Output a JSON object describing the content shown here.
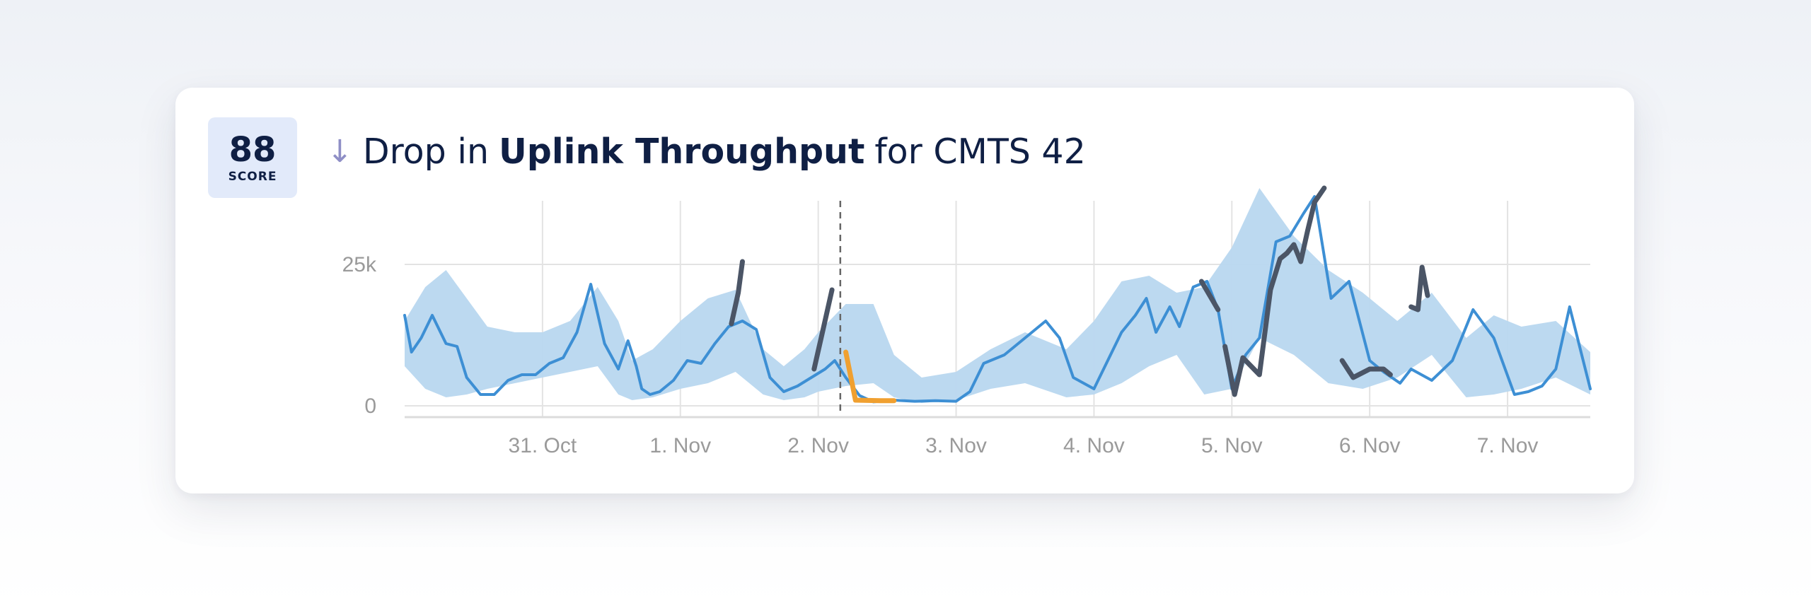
{
  "card": {
    "score": {
      "value": "88",
      "label": "SCORE"
    },
    "title": {
      "arrow_icon": "arrow-down-icon",
      "prefix": "Drop in",
      "metric": "Uplink Throughput",
      "suffix": "for CMTS 42"
    }
  },
  "chart_data": {
    "type": "line",
    "x_unit": "days",
    "x_start": "30. Oct",
    "xlim": [
      0.0,
      8.6
    ],
    "ylim": [
      0,
      35000
    ],
    "y_ticks": [
      {
        "value": 0,
        "label": "0"
      },
      {
        "value": 25000,
        "label": "25k"
      }
    ],
    "x_ticks": [
      {
        "value": 1,
        "label": "31. Oct"
      },
      {
        "value": 2,
        "label": "1. Nov"
      },
      {
        "value": 3,
        "label": "2. Nov"
      },
      {
        "value": 4,
        "label": "3. Nov"
      },
      {
        "value": 5,
        "label": "4. Nov"
      },
      {
        "value": 6,
        "label": "5. Nov"
      },
      {
        "value": 7,
        "label": "6. Nov"
      },
      {
        "value": 8,
        "label": "7. Nov"
      }
    ],
    "grid": true,
    "event_marker_x": 3.16,
    "colors": {
      "band": "#b8d7ef",
      "line": "#3d8fd4",
      "anomaly_high": "#4b5566",
      "anomaly_drop": "#f0a030",
      "grid": "#e3e3e3",
      "marker": "#666666"
    },
    "expected_band": {
      "x": [
        0.0,
        0.15,
        0.3,
        0.45,
        0.6,
        0.8,
        1.0,
        1.2,
        1.4,
        1.55,
        1.65,
        1.8,
        2.0,
        2.2,
        2.4,
        2.6,
        2.75,
        2.9,
        3.0,
        3.2,
        3.4,
        3.55,
        3.75,
        4.0,
        4.25,
        4.5,
        4.8,
        5.0,
        5.2,
        5.4,
        5.6,
        5.8,
        6.0,
        6.2,
        6.45,
        6.7,
        6.95,
        7.2,
        7.45,
        7.7,
        7.9,
        8.1,
        8.35,
        8.6
      ],
      "upper": [
        15000,
        21000,
        24000,
        19000,
        14000,
        13000,
        13000,
        15000,
        21000,
        15000,
        8000,
        10000,
        15000,
        19000,
        20500,
        10000,
        7000,
        10000,
        13000,
        18000,
        18000,
        9000,
        5000,
        6000,
        10000,
        13000,
        10000,
        15000,
        22000,
        23000,
        20000,
        21000,
        28000,
        38500,
        30000,
        24000,
        20000,
        15000,
        20000,
        12000,
        16000,
        14000,
        15000,
        9500
      ],
      "lower": [
        7000,
        3000,
        1500,
        2000,
        3000,
        4000,
        5000,
        6000,
        7000,
        2000,
        1000,
        1500,
        3000,
        4000,
        6000,
        2000,
        1000,
        1500,
        2500,
        3500,
        4000,
        1500,
        500,
        1000,
        3000,
        4000,
        1500,
        2000,
        4000,
        7000,
        9000,
        2000,
        3000,
        12000,
        9000,
        4000,
        3000,
        5000,
        9000,
        1500,
        2000,
        3000,
        5000,
        2000
      ]
    },
    "series": [
      {
        "role": "observed",
        "x": [
          0.0,
          0.05,
          0.12,
          0.2,
          0.3,
          0.38,
          0.45,
          0.55,
          0.65,
          0.75,
          0.85,
          0.95,
          1.05,
          1.15,
          1.25,
          1.35,
          1.45,
          1.55,
          1.62,
          1.68,
          1.72,
          1.78,
          1.85,
          1.95,
          2.05,
          2.15,
          2.25,
          2.35,
          2.45,
          2.55,
          2.65,
          2.75,
          2.85,
          2.95,
          3.05,
          3.12,
          3.2,
          3.3,
          3.4,
          3.55,
          3.7,
          3.85,
          4.0,
          4.1,
          4.2,
          4.35,
          4.5,
          4.65,
          4.75,
          4.85,
          5.0,
          5.1,
          5.2,
          5.3,
          5.38,
          5.45,
          5.55,
          5.62,
          5.72,
          5.82,
          5.9,
          6.0,
          6.1,
          6.2,
          6.32,
          6.42,
          6.52,
          6.6,
          6.72,
          6.85,
          7.0,
          7.1,
          7.22,
          7.3,
          7.45,
          7.6,
          7.75,
          7.9,
          8.05,
          8.15,
          8.25,
          8.35,
          8.45,
          8.6
        ],
        "y": [
          16000,
          9500,
          12000,
          16000,
          11000,
          10500,
          5000,
          2000,
          2000,
          4500,
          5500,
          5500,
          7500,
          8500,
          13000,
          21500,
          11000,
          6500,
          11500,
          7000,
          3000,
          2000,
          2500,
          4500,
          8000,
          7500,
          11000,
          14000,
          15000,
          13500,
          5000,
          2500,
          3500,
          5000,
          6500,
          8000,
          5000,
          1800,
          700,
          1000,
          800,
          900,
          800,
          2500,
          7500,
          9000,
          12000,
          15000,
          12000,
          5000,
          3000,
          8000,
          13000,
          16000,
          19000,
          13000,
          17500,
          14000,
          21000,
          22000,
          17000,
          3000,
          9000,
          12000,
          29000,
          30000,
          34000,
          37000,
          19000,
          22000,
          8000,
          6000,
          4000,
          6500,
          4500,
          8000,
          17000,
          12000,
          2000,
          2500,
          3500,
          6500,
          17500,
          3000
        ],
        "overlays": [
          {
            "role": "anomaly_high",
            "x": [
              2.37,
              2.42,
              2.45
            ],
            "y": [
              14500,
              20000,
              25500
            ]
          },
          {
            "role": "anomaly_high",
            "x": [
              2.97,
              3.04,
              3.1
            ],
            "y": [
              6500,
              14000,
              20500
            ]
          },
          {
            "role": "anomaly_drop",
            "x": [
              3.2,
              3.27,
              3.45,
              3.55
            ],
            "y": [
              9500,
              1000,
              900,
              900
            ]
          },
          {
            "role": "anomaly_high",
            "x": [
              5.78,
              5.9
            ],
            "y": [
              22000,
              17000
            ]
          },
          {
            "role": "anomaly_high",
            "x": [
              5.95,
              6.02,
              6.08,
              6.2,
              6.28,
              6.35,
              6.4,
              6.45,
              6.5,
              6.55,
              6.6,
              6.67
            ],
            "y": [
              10500,
              2000,
              8500,
              5500,
              20500,
              26000,
              27000,
              28500,
              25500,
              31000,
              36000,
              38500
            ]
          },
          {
            "role": "anomaly_high",
            "x": [
              6.8,
              6.88,
              7.0,
              7.1,
              7.15
            ],
            "y": [
              8000,
              5000,
              6500,
              6500,
              5500
            ]
          },
          {
            "role": "anomaly_high",
            "x": [
              7.3,
              7.35,
              7.38,
              7.42
            ],
            "y": [
              17500,
              17000,
              24500,
              19500
            ]
          }
        ]
      }
    ]
  }
}
